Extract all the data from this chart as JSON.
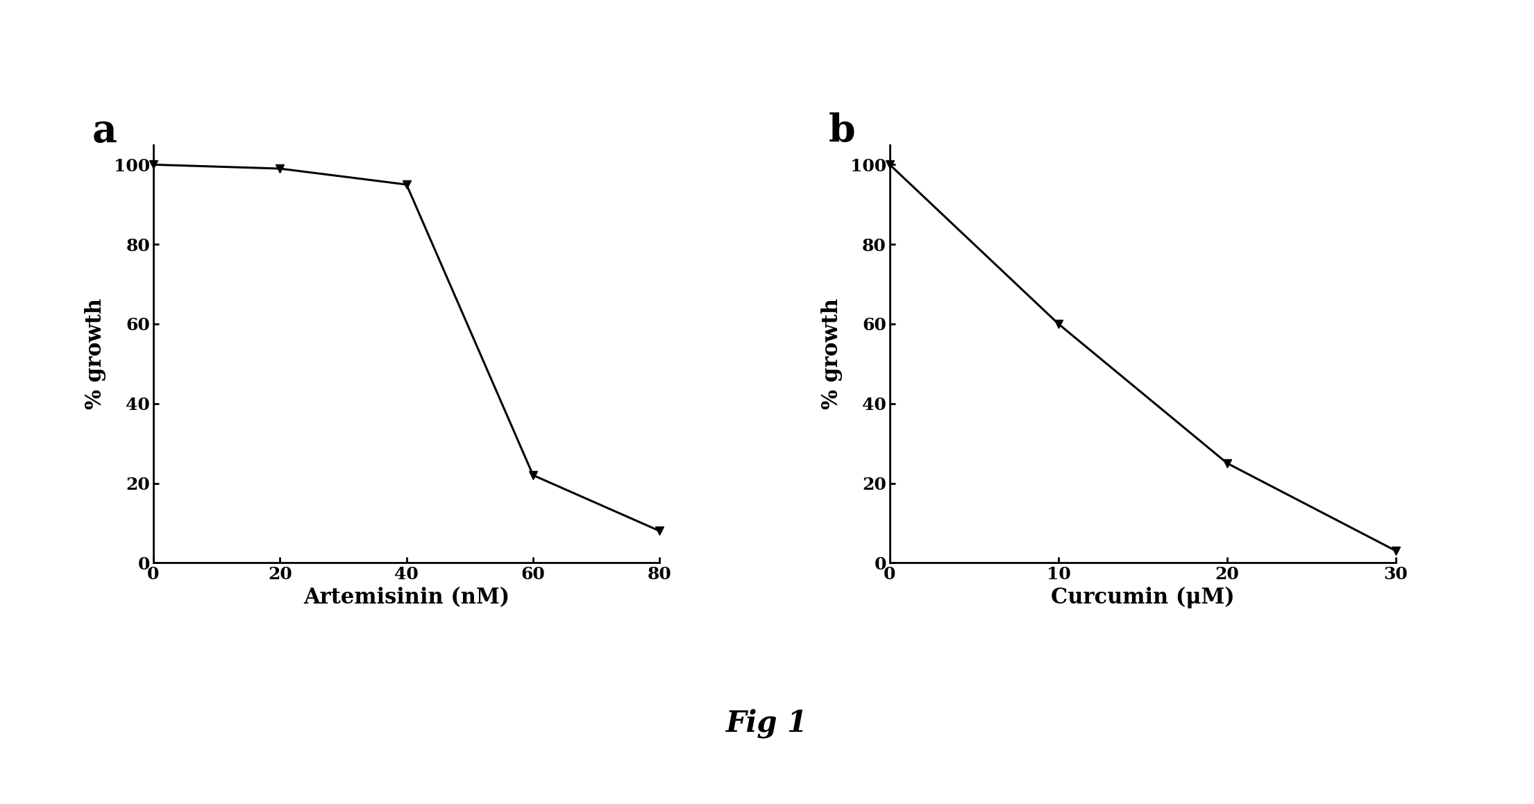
{
  "panel_a": {
    "label": "a",
    "x": [
      0,
      20,
      40,
      60,
      80
    ],
    "y": [
      100,
      99,
      95,
      22,
      8
    ],
    "xlabel": "Artemisinin (nM)",
    "ylabel": "% growth",
    "xlim": [
      0,
      80
    ],
    "ylim": [
      0,
      105
    ],
    "xticks": [
      0,
      20,
      40,
      60,
      80
    ],
    "yticks": [
      0,
      20,
      40,
      60,
      80,
      100
    ]
  },
  "panel_b": {
    "label": "b",
    "x": [
      0,
      10,
      20,
      30
    ],
    "y": [
      100,
      60,
      25,
      3
    ],
    "xlabel": "Curcumin (μM)",
    "ylabel": "% growth",
    "xlim": [
      0,
      30
    ],
    "ylim": [
      0,
      105
    ],
    "xticks": [
      0,
      10,
      20,
      30
    ],
    "yticks": [
      0,
      20,
      40,
      60,
      80,
      100
    ]
  },
  "fig_label": "Fig 1",
  "background_color": "#ffffff",
  "line_color": "#000000",
  "marker": "v",
  "marker_size": 9,
  "line_width": 2.2,
  "label_fontsize": 22,
  "tick_fontsize": 18,
  "panel_label_fontsize": 40,
  "fig_label_fontsize": 30
}
